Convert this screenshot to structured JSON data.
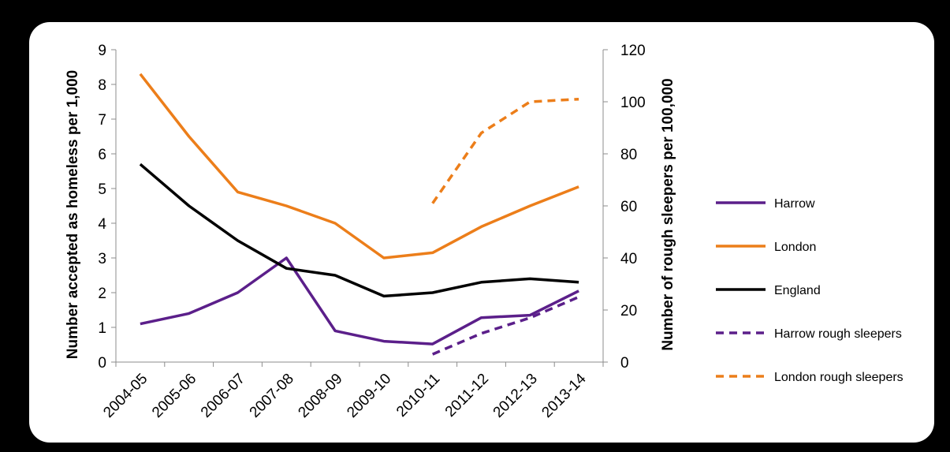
{
  "chart_data": {
    "type": "line",
    "categories": [
      "2004-05",
      "2005-06",
      "2006-07",
      "2007-08",
      "2008-09",
      "2009-10",
      "2010-11",
      "2011-12",
      "2012-13",
      "2013-14"
    ],
    "left_axis": {
      "label": "Number accepted as homeless per 1,000",
      "ylim": [
        0,
        9
      ],
      "ticks": [
        0,
        1,
        2,
        3,
        4,
        5,
        6,
        7,
        8,
        9
      ]
    },
    "right_axis": {
      "label": "Number of rough sleepers per 100,000",
      "ylim": [
        0,
        120
      ],
      "ticks": [
        0,
        20,
        40,
        60,
        80,
        100,
        120
      ]
    },
    "grid": false,
    "legend_position": "right",
    "series": [
      {
        "name": "Harrow",
        "axis": "left",
        "style": "solid",
        "color": "#5b1f8a",
        "values": [
          1.1,
          1.4,
          2.0,
          3.0,
          0.9,
          0.6,
          0.52,
          1.28,
          1.35,
          2.05
        ]
      },
      {
        "name": "London",
        "axis": "left",
        "style": "solid",
        "color": "#ec7e1a",
        "values": [
          8.3,
          6.5,
          4.9,
          4.5,
          4.0,
          3.0,
          3.15,
          3.9,
          4.5,
          5.05
        ]
      },
      {
        "name": "England",
        "axis": "left",
        "style": "solid",
        "color": "#000000",
        "values": [
          5.7,
          4.5,
          3.5,
          2.7,
          2.5,
          1.9,
          2.0,
          2.3,
          2.4,
          2.3
        ]
      },
      {
        "name": "Harrow rough sleepers",
        "axis": "right",
        "style": "dashed",
        "color": "#5b1f8a",
        "values": [
          null,
          null,
          null,
          null,
          null,
          null,
          3,
          11,
          17,
          25
        ]
      },
      {
        "name": "London rough sleepers",
        "axis": "right",
        "style": "dashed",
        "color": "#ec7e1a",
        "values": [
          null,
          null,
          null,
          null,
          null,
          null,
          61,
          88,
          100,
          101
        ]
      }
    ]
  }
}
